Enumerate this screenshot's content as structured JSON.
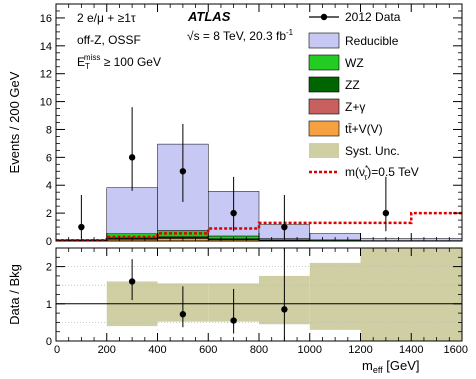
{
  "chart_data": [
    {
      "type": "bar",
      "panel": "main",
      "ylabel": "Events / 200 GeV",
      "xlim": [
        0,
        1600
      ],
      "ylim": [
        0,
        17
      ],
      "yticks": [
        0,
        2,
        4,
        6,
        8,
        10,
        12,
        14,
        16
      ],
      "xticks": [
        0,
        200,
        400,
        600,
        800,
        1000,
        1200,
        1400,
        1600
      ],
      "annotations": {
        "selection": [
          "2 e/μ + ≥1τ",
          "off-Z, OSSF",
          "E",
          "T",
          "miss",
          " ≥ 100 GeV"
        ],
        "experiment": "ATLAS",
        "energy": "√s = 8 TeV, 20.3 fb",
        "energy_sup": "-1"
      },
      "bin_edges": [
        0,
        200,
        400,
        600,
        800,
        1000,
        1200,
        1600
      ],
      "stack": [
        {
          "name": "tt̄+V(V)",
          "color": "#f5a142",
          "values": [
            0.02,
            0.12,
            0.18,
            0.1,
            0.05,
            0.02,
            0.01
          ]
        },
        {
          "name": "Z+γ",
          "color": "#c96060",
          "values": [
            0.0,
            0.05,
            0.05,
            0.03,
            0.0,
            0.0,
            0.0
          ]
        },
        {
          "name": "ZZ",
          "color": "#006400",
          "values": [
            0.0,
            0.05,
            0.07,
            0.03,
            0.02,
            0.01,
            0.0
          ]
        },
        {
          "name": "WZ",
          "color": "#22cc22",
          "values": [
            0.03,
            0.3,
            0.45,
            0.2,
            0.1,
            0.05,
            0.02
          ]
        },
        {
          "name": "Reducible",
          "color": "#c8c8f5",
          "values": [
            0.05,
            3.3,
            6.2,
            3.2,
            1.0,
            0.45,
            0.15
          ]
        }
      ],
      "data": {
        "name": "2012 Data",
        "x": [
          100,
          300,
          500,
          700,
          900,
          1300
        ],
        "y": [
          1,
          6,
          5,
          2,
          1,
          2
        ],
        "err_up": [
          2.3,
          3.6,
          3.4,
          2.6,
          2.3,
          2.6
        ],
        "err_down": [
          0.8,
          2.4,
          2.2,
          1.3,
          0.8,
          1.3
        ]
      },
      "signal": {
        "name": "m(ν",
        "name_sub": "τ",
        "name_sup": "*",
        "name_tail": ")=0.5 TeV",
        "color": "#e00000",
        "x": [
          0,
          200,
          400,
          600,
          800,
          1000,
          1200,
          1400,
          1600
        ],
        "y": [
          0.05,
          0.3,
          0.55,
          0.9,
          1.3,
          1.3,
          1.3,
          2.0,
          2.0
        ]
      },
      "legend": {
        "placement": "top-right",
        "entries": [
          "2012 Data",
          "Reducible",
          "WZ",
          "ZZ",
          "Z+γ",
          "tt̄+V(V)",
          "Syst. Unc.",
          "m(ν*τ)=0.5 TeV"
        ]
      }
    },
    {
      "type": "bar",
      "panel": "ratio",
      "ylabel": "Data / Bkg",
      "xlabel": "m",
      "xlabel_sub": "eff",
      "xlabel_unit": " [GeV]",
      "xlim": [
        0,
        1600
      ],
      "ylim": [
        0,
        2.5
      ],
      "yticks": [
        0,
        1,
        2
      ],
      "xticks": [
        0,
        200,
        400,
        600,
        800,
        1000,
        1200,
        1400,
        1600
      ],
      "band": {
        "name": "Syst. Unc.",
        "color": "#cfcfa3",
        "bin_edges": [
          200,
          400,
          600,
          800,
          1000,
          1200,
          1600
        ],
        "low": [
          0.4,
          0.52,
          0.52,
          0.45,
          0.3,
          0.0
        ],
        "high": [
          1.6,
          1.55,
          1.55,
          1.75,
          2.1,
          2.5
        ]
      },
      "data": {
        "x": [
          300,
          500,
          700,
          900
        ],
        "y": [
          1.6,
          0.72,
          0.55,
          0.85
        ],
        "err_up": [
          0.6,
          0.75,
          0.85,
          1.8
        ],
        "err_down": [
          0.5,
          0.35,
          0.35,
          0.85
        ]
      }
    }
  ],
  "labels": {
    "tick_main": [
      "0",
      "2",
      "4",
      "6",
      "8",
      "10",
      "12",
      "14",
      "16"
    ],
    "tick_ratio": [
      "0",
      "1",
      "2"
    ],
    "tick_x": [
      "0",
      "200",
      "400",
      "600",
      "800",
      "1000",
      "1200",
      "1400",
      "1600"
    ]
  }
}
